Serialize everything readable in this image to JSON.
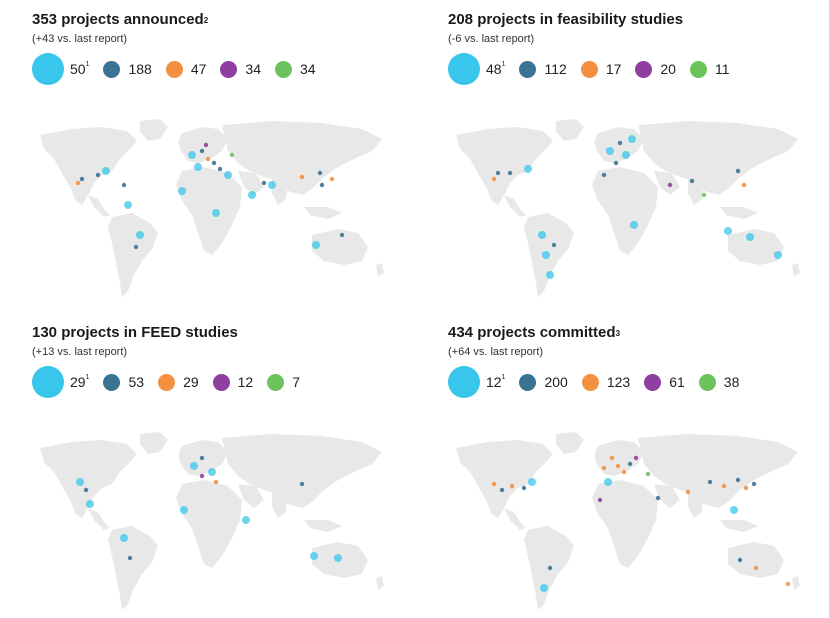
{
  "colors": {
    "large_markets": "#38c6ec",
    "dark_blue": "#3a7394",
    "orange": "#f3903f",
    "purple": "#8f3fa0",
    "green": "#6dc35b",
    "land": "#e8e8e8"
  },
  "panels": [
    {
      "title": "353 projects announced",
      "title_sup": "2",
      "subtitle": "(+43 vs. last report)",
      "legend": [
        {
          "value": "50",
          "sup": "1",
          "color_key": "large_markets"
        },
        {
          "value": "188",
          "color_key": "dark_blue"
        },
        {
          "value": "47",
          "color_key": "orange"
        },
        {
          "value": "34",
          "color_key": "purple"
        },
        {
          "value": "34",
          "color_key": "green"
        }
      ]
    },
    {
      "title": "208 projects in feasibility studies",
      "title_sup": "",
      "subtitle": "(-6 vs. last report)",
      "legend": [
        {
          "value": "48",
          "sup": "1",
          "color_key": "large_markets"
        },
        {
          "value": "112",
          "color_key": "dark_blue"
        },
        {
          "value": "17",
          "color_key": "orange"
        },
        {
          "value": "20",
          "color_key": "purple"
        },
        {
          "value": "11",
          "color_key": "green"
        }
      ]
    },
    {
      "title": "130 projects in FEED studies",
      "title_sup": "",
      "subtitle": "(+13 vs. last report)",
      "legend": [
        {
          "value": "29",
          "sup": "1",
          "color_key": "large_markets"
        },
        {
          "value": "53",
          "color_key": "dark_blue"
        },
        {
          "value": "29",
          "color_key": "orange"
        },
        {
          "value": "12",
          "color_key": "purple"
        },
        {
          "value": "7",
          "color_key": "green"
        }
      ]
    },
    {
      "title": "434 projects committed",
      "title_sup": "3",
      "subtitle": "(+64 vs. last report)",
      "legend": [
        {
          "value": "12",
          "sup": "1",
          "color_key": "large_markets"
        },
        {
          "value": "200",
          "color_key": "dark_blue"
        },
        {
          "value": "123",
          "color_key": "orange"
        },
        {
          "value": "61",
          "color_key": "purple"
        },
        {
          "value": "38",
          "color_key": "green"
        }
      ]
    }
  ]
}
